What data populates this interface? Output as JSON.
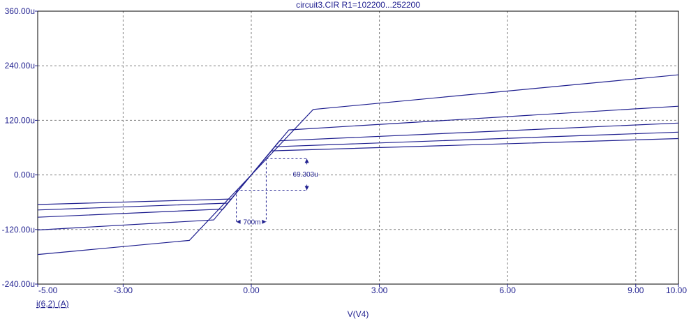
{
  "chart_data": {
    "type": "line",
    "title": "circuit3.CIR R1=102200...252200",
    "xlabel": "V(V4)",
    "ylabel": "i(6,2) (A)",
    "xlim": [
      -5,
      10
    ],
    "ylim": [
      -240,
      360
    ],
    "x_ticks": [
      -5,
      -3,
      0,
      3,
      6,
      9,
      10
    ],
    "x_tick_labels": [
      "-5.00",
      "-3.00",
      "0.00",
      "3.00",
      "6.00",
      "9.00",
      "10.00"
    ],
    "y_ticks": [
      -240,
      -120,
      0,
      120,
      240,
      360
    ],
    "y_tick_labels": [
      "-240.00u",
      "-120.00u",
      "0.00u",
      "120.00u",
      "240.00u",
      "360.00u"
    ],
    "grid": true,
    "line_color": "#1f1f8f",
    "series": [
      {
        "x": [
          -5,
          -1.45,
          1.45,
          10
        ],
        "y": [
          -175,
          -144,
          144,
          220
        ]
      },
      {
        "x": [
          -5,
          -0.88,
          0.88,
          10
        ],
        "y": [
          -121,
          -99,
          99,
          151
        ]
      },
      {
        "x": [
          -5,
          -0.66,
          0.66,
          10
        ],
        "y": [
          -93,
          -75,
          75,
          114
        ]
      },
      {
        "x": [
          -5,
          -0.55,
          0.55,
          10
        ],
        "y": [
          -77,
          -62,
          62,
          94
        ]
      },
      {
        "x": [
          -5,
          -0.47,
          0.47,
          10
        ],
        "y": [
          -65,
          -53,
          53,
          80
        ]
      }
    ],
    "annotations": [
      {
        "label": "69.303u",
        "kind": "delta-y",
        "x": 1.3,
        "y_from": -33.7,
        "y_to": 35.6
      },
      {
        "label": "700m",
        "kind": "delta-x",
        "y": -103,
        "x_from": -0.35,
        "x_to": 0.35
      }
    ]
  }
}
